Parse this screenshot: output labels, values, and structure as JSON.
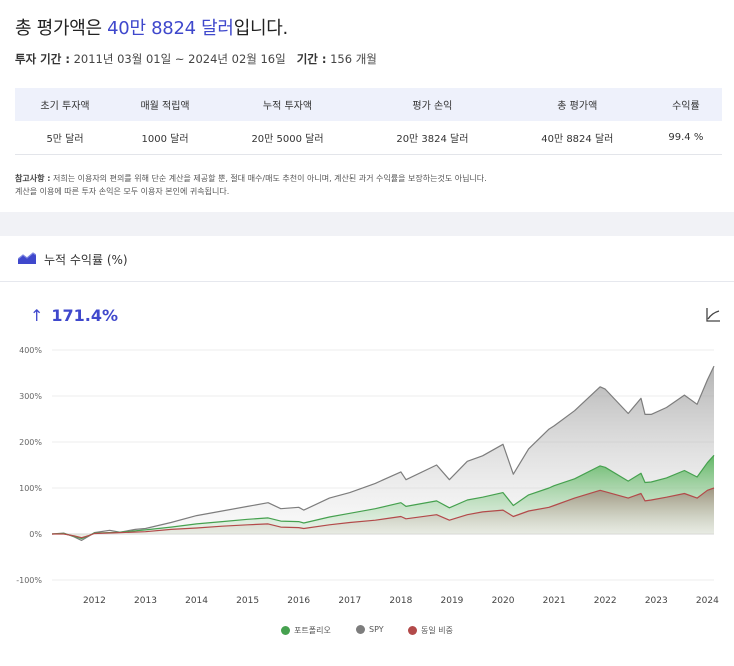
{
  "summary": {
    "headline_pre": "총 평가액은 ",
    "headline_value": "40만 8824 달러",
    "headline_post": "입니다.",
    "period_label": "투자 기간 :",
    "period_value": " 2011년 03월 01일 ~ 2024년 02월 16일",
    "duration_label": "기간 :",
    "duration_value": " 156 개월",
    "table": {
      "headers": [
        "초기 투자액",
        "매월 적립액",
        "누적 투자액",
        "평가 손익",
        "총 평가액",
        "수익률"
      ],
      "values": [
        "5만 달러",
        "1000 달러",
        "20만 5000 달러",
        "20만 3824 달러",
        "40만 8824 달러",
        "99.4 %"
      ]
    },
    "note_label": "참고사항 :",
    "note_line1": " 저희는 이용자의 편의를 위해 단순 계산을 제공할 뿐, 절대 매수/매도 추천이 아니며, 계산된 과거 수익률을 보장하는것도 아닙니다.",
    "note_line2": "계산을 이용에 따른 투자 손익은 모두 이용자 본인에 귀속됩니다."
  },
  "chart_section": {
    "title": "누적 수익률 (%)",
    "return_arrow": "↑",
    "return_value": "171.4%",
    "icons": {
      "header": "area-chart-icon",
      "toggle": "chart-type-toggle-icon"
    }
  },
  "chart_data": {
    "type": "area",
    "x_ticks": [
      "2012",
      "2013",
      "2014",
      "2015",
      "2016",
      "2017",
      "2018",
      "2019",
      "2020",
      "2021",
      "2022",
      "2023",
      "2024"
    ],
    "y_ticks": [
      "400%",
      "300%",
      "200%",
      "100%",
      "0%",
      "-100%"
    ],
    "ylim": [
      -100,
      400
    ],
    "xlim": [
      2011.17,
      2024.13
    ],
    "grid": true,
    "legend_position": "bottom",
    "series": [
      {
        "name": "SPY",
        "color": "#7d7d7d",
        "points": [
          [
            2011.17,
            0
          ],
          [
            2011.4,
            2
          ],
          [
            2011.6,
            -6
          ],
          [
            2011.75,
            -14
          ],
          [
            2011.9,
            -4
          ],
          [
            2012.0,
            3
          ],
          [
            2012.3,
            8
          ],
          [
            2012.5,
            4
          ],
          [
            2012.8,
            10
          ],
          [
            2013.0,
            12
          ],
          [
            2013.5,
            25
          ],
          [
            2014.0,
            40
          ],
          [
            2014.5,
            50
          ],
          [
            2015.0,
            60
          ],
          [
            2015.4,
            68
          ],
          [
            2015.65,
            55
          ],
          [
            2016.0,
            58
          ],
          [
            2016.1,
            52
          ],
          [
            2016.6,
            78
          ],
          [
            2017.0,
            90
          ],
          [
            2017.5,
            110
          ],
          [
            2018.0,
            135
          ],
          [
            2018.1,
            118
          ],
          [
            2018.7,
            150
          ],
          [
            2018.95,
            118
          ],
          [
            2019.3,
            158
          ],
          [
            2019.6,
            170
          ],
          [
            2020.0,
            195
          ],
          [
            2020.2,
            130
          ],
          [
            2020.5,
            185
          ],
          [
            2020.9,
            228
          ],
          [
            2021.0,
            235
          ],
          [
            2021.4,
            268
          ],
          [
            2021.9,
            320
          ],
          [
            2022.0,
            315
          ],
          [
            2022.45,
            262
          ],
          [
            2022.7,
            295
          ],
          [
            2022.78,
            260
          ],
          [
            2022.9,
            260
          ],
          [
            2023.2,
            275
          ],
          [
            2023.55,
            302
          ],
          [
            2023.8,
            282
          ],
          [
            2024.0,
            335
          ],
          [
            2024.13,
            365
          ]
        ]
      },
      {
        "name": "포트폴리오",
        "color": "#46a14f",
        "points": [
          [
            2011.17,
            0
          ],
          [
            2011.4,
            1
          ],
          [
            2011.6,
            -5
          ],
          [
            2011.75,
            -10
          ],
          [
            2011.9,
            -3
          ],
          [
            2012.0,
            2
          ],
          [
            2012.5,
            4
          ],
          [
            2013.0,
            9
          ],
          [
            2013.5,
            15
          ],
          [
            2014.0,
            22
          ],
          [
            2014.5,
            27
          ],
          [
            2015.0,
            32
          ],
          [
            2015.4,
            35
          ],
          [
            2015.65,
            28
          ],
          [
            2016.0,
            27
          ],
          [
            2016.1,
            24
          ],
          [
            2016.6,
            37
          ],
          [
            2017.0,
            45
          ],
          [
            2017.5,
            55
          ],
          [
            2018.0,
            68
          ],
          [
            2018.1,
            60
          ],
          [
            2018.7,
            72
          ],
          [
            2018.95,
            57
          ],
          [
            2019.3,
            74
          ],
          [
            2019.6,
            80
          ],
          [
            2020.0,
            90
          ],
          [
            2020.2,
            62
          ],
          [
            2020.5,
            85
          ],
          [
            2020.9,
            100
          ],
          [
            2021.0,
            105
          ],
          [
            2021.4,
            120
          ],
          [
            2021.9,
            148
          ],
          [
            2022.0,
            145
          ],
          [
            2022.45,
            115
          ],
          [
            2022.7,
            132
          ],
          [
            2022.78,
            112
          ],
          [
            2022.9,
            113
          ],
          [
            2023.2,
            122
          ],
          [
            2023.55,
            138
          ],
          [
            2023.8,
            124
          ],
          [
            2024.0,
            155
          ],
          [
            2024.13,
            171
          ]
        ]
      },
      {
        "name": "동일 비중",
        "color": "#b34a4a",
        "points": [
          [
            2011.17,
            0
          ],
          [
            2011.4,
            0
          ],
          [
            2011.6,
            -4
          ],
          [
            2011.75,
            -8
          ],
          [
            2011.9,
            -3
          ],
          [
            2012.0,
            1
          ],
          [
            2012.5,
            3
          ],
          [
            2013.0,
            5
          ],
          [
            2013.5,
            10
          ],
          [
            2014.0,
            13
          ],
          [
            2014.5,
            17
          ],
          [
            2015.0,
            20
          ],
          [
            2015.4,
            22
          ],
          [
            2015.65,
            15
          ],
          [
            2016.0,
            14
          ],
          [
            2016.1,
            12
          ],
          [
            2016.6,
            20
          ],
          [
            2017.0,
            25
          ],
          [
            2017.5,
            30
          ],
          [
            2018.0,
            38
          ],
          [
            2018.1,
            33
          ],
          [
            2018.7,
            42
          ],
          [
            2018.95,
            30
          ],
          [
            2019.3,
            42
          ],
          [
            2019.6,
            48
          ],
          [
            2020.0,
            52
          ],
          [
            2020.2,
            38
          ],
          [
            2020.5,
            50
          ],
          [
            2020.9,
            58
          ],
          [
            2021.0,
            62
          ],
          [
            2021.4,
            78
          ],
          [
            2021.9,
            95
          ],
          [
            2022.0,
            92
          ],
          [
            2022.45,
            78
          ],
          [
            2022.7,
            88
          ],
          [
            2022.78,
            72
          ],
          [
            2022.9,
            74
          ],
          [
            2023.2,
            80
          ],
          [
            2023.55,
            88
          ],
          [
            2023.8,
            78
          ],
          [
            2024.0,
            95
          ],
          [
            2024.13,
            100
          ]
        ]
      }
    ],
    "legend": [
      {
        "name": "포트폴리오",
        "color": "#46a14f"
      },
      {
        "name": "SPY",
        "color": "#7d7d7d"
      },
      {
        "name": "동일 비중",
        "color": "#b34a4a"
      }
    ]
  }
}
